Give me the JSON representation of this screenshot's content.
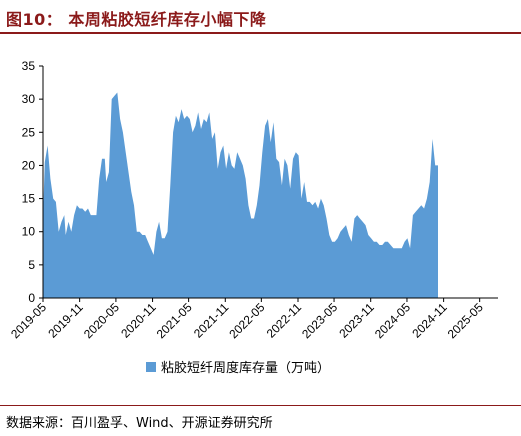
{
  "header": {
    "title": "图10：  本周粘胶短纤库存小幅下降"
  },
  "source": {
    "text": "数据来源：百川盈孚、Wind、开源证券研究所"
  },
  "colors": {
    "accent": "#8b1a1a",
    "series": "#5b9bd5"
  },
  "chart_data": {
    "type": "area",
    "title": "",
    "xlabel": "",
    "ylabel": "",
    "ylim": [
      0,
      35
    ],
    "yticks": [
      0,
      5,
      10,
      15,
      20,
      25,
      30,
      35
    ],
    "xlim": [
      "2019-05-01",
      "2025-08-01"
    ],
    "xticks": [
      "2019-05",
      "2019-11",
      "2020-05",
      "2020-11",
      "2021-05",
      "2021-11",
      "2022-05",
      "2022-11",
      "2023-05",
      "2023-11",
      "2024-05",
      "2024-11",
      "2025-05"
    ],
    "grid": false,
    "legend": "bottom",
    "series": [
      {
        "name": "粘胶短纤周度库存量（万吨）",
        "points": [
          [
            "2019-05-03",
            14
          ],
          [
            "2019-05-10",
            20.5
          ],
          [
            "2019-05-24",
            23
          ],
          [
            "2019-06-07",
            18
          ],
          [
            "2019-06-21",
            15
          ],
          [
            "2019-07-05",
            14.5
          ],
          [
            "2019-07-19",
            10
          ],
          [
            "2019-08-02",
            11.5
          ],
          [
            "2019-08-16",
            12.5
          ],
          [
            "2019-08-23",
            9.5
          ],
          [
            "2019-09-06",
            11.5
          ],
          [
            "2019-09-20",
            10
          ],
          [
            "2019-10-04",
            12.5
          ],
          [
            "2019-10-18",
            14
          ],
          [
            "2019-11-01",
            13.5
          ],
          [
            "2019-11-15",
            13.5
          ],
          [
            "2019-11-29",
            13
          ],
          [
            "2019-12-13",
            13.5
          ],
          [
            "2019-12-27",
            12.5
          ],
          [
            "2020-01-10",
            12.5
          ],
          [
            "2020-01-24",
            12.5
          ],
          [
            "2020-02-07",
            18
          ],
          [
            "2020-02-21",
            21
          ],
          [
            "2020-03-06",
            21
          ],
          [
            "2020-03-13",
            17.5
          ],
          [
            "2020-03-27",
            19
          ],
          [
            "2020-04-10",
            30
          ],
          [
            "2020-04-24",
            30.5
          ],
          [
            "2020-05-08",
            31
          ],
          [
            "2020-05-22",
            27
          ],
          [
            "2020-06-05",
            25
          ],
          [
            "2020-06-19",
            22
          ],
          [
            "2020-07-03",
            19
          ],
          [
            "2020-07-17",
            16
          ],
          [
            "2020-07-31",
            14
          ],
          [
            "2020-08-14",
            10
          ],
          [
            "2020-08-28",
            10
          ],
          [
            "2020-09-11",
            9.5
          ],
          [
            "2020-09-25",
            9.5
          ],
          [
            "2020-10-09",
            8.5
          ],
          [
            "2020-10-23",
            7.5
          ],
          [
            "2020-11-06",
            6.5
          ],
          [
            "2020-11-20",
            10
          ],
          [
            "2020-12-04",
            11.5
          ],
          [
            "2020-12-18",
            9
          ],
          [
            "2021-01-01",
            9
          ],
          [
            "2021-01-15",
            10
          ],
          [
            "2021-01-29",
            17
          ],
          [
            "2021-02-12",
            25
          ],
          [
            "2021-02-26",
            27.5
          ],
          [
            "2021-03-12",
            26.5
          ],
          [
            "2021-03-26",
            28.5
          ],
          [
            "2021-04-09",
            27
          ],
          [
            "2021-04-23",
            27.5
          ],
          [
            "2021-05-07",
            27
          ],
          [
            "2021-05-21",
            25
          ],
          [
            "2021-06-04",
            26
          ],
          [
            "2021-06-18",
            28
          ],
          [
            "2021-07-02",
            25.5
          ],
          [
            "2021-07-16",
            27
          ],
          [
            "2021-07-30",
            26.5
          ],
          [
            "2021-08-13",
            28
          ],
          [
            "2021-08-27",
            24
          ],
          [
            "2021-09-10",
            25
          ],
          [
            "2021-09-24",
            19.5
          ],
          [
            "2021-10-08",
            22
          ],
          [
            "2021-10-22",
            23
          ],
          [
            "2021-11-05",
            19.5
          ],
          [
            "2021-11-19",
            22
          ],
          [
            "2021-12-03",
            20
          ],
          [
            "2021-12-17",
            19.5
          ],
          [
            "2021-12-31",
            22
          ],
          [
            "2022-01-14",
            21
          ],
          [
            "2022-01-28",
            20
          ],
          [
            "2022-02-11",
            18
          ],
          [
            "2022-02-25",
            14
          ],
          [
            "2022-03-11",
            12
          ],
          [
            "2022-03-25",
            12
          ],
          [
            "2022-04-08",
            14
          ],
          [
            "2022-04-22",
            17
          ],
          [
            "2022-05-06",
            22
          ],
          [
            "2022-05-20",
            26
          ],
          [
            "2022-06-03",
            27
          ],
          [
            "2022-06-17",
            23.5
          ],
          [
            "2022-07-01",
            26.5
          ],
          [
            "2022-07-15",
            21
          ],
          [
            "2022-07-29",
            20.5
          ],
          [
            "2022-08-12",
            17
          ],
          [
            "2022-08-26",
            21
          ],
          [
            "2022-09-09",
            20
          ],
          [
            "2022-09-23",
            16.5
          ],
          [
            "2022-10-07",
            21
          ],
          [
            "2022-10-21",
            22
          ],
          [
            "2022-11-04",
            21.5
          ],
          [
            "2022-11-18",
            15
          ],
          [
            "2022-12-02",
            17.5
          ],
          [
            "2022-12-16",
            14.5
          ],
          [
            "2022-12-30",
            14.5
          ],
          [
            "2023-01-13",
            14
          ],
          [
            "2023-01-27",
            14.5
          ],
          [
            "2023-02-10",
            13.5
          ],
          [
            "2023-02-24",
            15
          ],
          [
            "2023-03-10",
            14
          ],
          [
            "2023-03-24",
            12
          ],
          [
            "2023-04-07",
            9.5
          ],
          [
            "2023-04-21",
            8.5
          ],
          [
            "2023-05-05",
            8.5
          ],
          [
            "2023-05-19",
            9
          ],
          [
            "2023-06-02",
            10
          ],
          [
            "2023-06-16",
            10.5
          ],
          [
            "2023-06-30",
            11
          ],
          [
            "2023-07-14",
            9.5
          ],
          [
            "2023-07-28",
            8.5
          ],
          [
            "2023-08-11",
            12
          ],
          [
            "2023-08-25",
            12.5
          ],
          [
            "2023-09-08",
            12
          ],
          [
            "2023-09-22",
            11.5
          ],
          [
            "2023-10-06",
            11
          ],
          [
            "2023-10-20",
            9.5
          ],
          [
            "2023-11-03",
            9
          ],
          [
            "2023-11-17",
            8.5
          ],
          [
            "2023-12-01",
            8.5
          ],
          [
            "2023-12-15",
            8
          ],
          [
            "2023-12-29",
            8
          ],
          [
            "2024-01-12",
            8.5
          ],
          [
            "2024-01-26",
            8.5
          ],
          [
            "2024-02-09",
            8
          ],
          [
            "2024-02-23",
            7.5
          ],
          [
            "2024-03-08",
            7.5
          ],
          [
            "2024-03-22",
            7.5
          ],
          [
            "2024-04-05",
            7.5
          ],
          [
            "2024-04-19",
            8.5
          ],
          [
            "2024-05-03",
            9
          ],
          [
            "2024-05-17",
            7.5
          ],
          [
            "2024-05-31",
            12.5
          ],
          [
            "2024-06-14",
            13
          ],
          [
            "2024-06-28",
            13.5
          ],
          [
            "2024-07-12",
            14
          ],
          [
            "2024-07-26",
            13.5
          ],
          [
            "2024-08-09",
            15
          ],
          [
            "2024-08-23",
            17.5
          ],
          [
            "2024-09-06",
            24
          ],
          [
            "2024-09-20",
            20
          ],
          [
            "2024-10-04",
            20
          ]
        ]
      }
    ]
  }
}
